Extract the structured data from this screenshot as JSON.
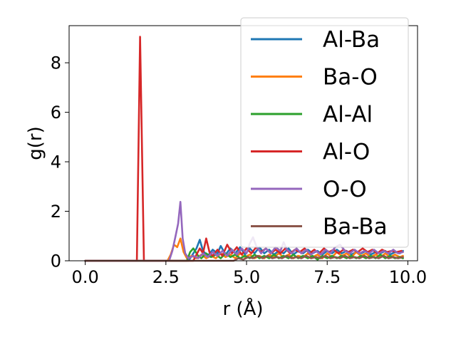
{
  "chart_data": {
    "type": "line",
    "xlabel": "r (Å)",
    "ylabel": "g(r)",
    "xlim": [
      -0.5,
      10.3
    ],
    "ylim": [
      0,
      9.5
    ],
    "xticks": [
      {
        "value": 0.0,
        "label": "0.0"
      },
      {
        "value": 2.5,
        "label": "2.5"
      },
      {
        "value": 5.0,
        "label": "5.0"
      },
      {
        "value": 7.5,
        "label": "7.5"
      },
      {
        "value": 10.0,
        "label": "10.0"
      }
    ],
    "yticks": [
      {
        "value": 0,
        "label": "0"
      },
      {
        "value": 2,
        "label": "2"
      },
      {
        "value": 4,
        "label": "4"
      },
      {
        "value": 6,
        "label": "6"
      },
      {
        "value": 8,
        "label": "8"
      }
    ],
    "grid": false,
    "legend_position": "top-right",
    "series": [
      {
        "name": "Al-Ba",
        "color": "#1f77b4",
        "points": [
          [
            0,
            0
          ],
          [
            3.2,
            0
          ],
          [
            3.3,
            0.2
          ],
          [
            3.45,
            0.5
          ],
          [
            3.55,
            0.85
          ],
          [
            3.65,
            0.4
          ],
          [
            3.8,
            0.2
          ],
          [
            3.95,
            0.45
          ],
          [
            4.1,
            0.3
          ],
          [
            4.2,
            0.6
          ],
          [
            4.35,
            0.25
          ],
          [
            4.5,
            0.5
          ],
          [
            4.65,
            0.3
          ],
          [
            4.8,
            0.55
          ],
          [
            4.95,
            0.25
          ],
          [
            5.1,
            0.5
          ],
          [
            5.25,
            0.3
          ],
          [
            5.4,
            0.55
          ],
          [
            5.55,
            0.3
          ],
          [
            5.7,
            0.45
          ],
          [
            5.85,
            0.25
          ],
          [
            6.0,
            0.4
          ],
          [
            6.15,
            0.3
          ],
          [
            6.3,
            0.5
          ],
          [
            6.45,
            0.25
          ],
          [
            6.6,
            0.4
          ],
          [
            6.75,
            0.3
          ],
          [
            6.9,
            0.45
          ],
          [
            7.05,
            0.3
          ],
          [
            7.2,
            0.4
          ],
          [
            7.35,
            0.25
          ],
          [
            7.5,
            0.4
          ],
          [
            7.65,
            0.3
          ],
          [
            7.8,
            0.45
          ],
          [
            7.95,
            0.3
          ],
          [
            8.1,
            0.4
          ],
          [
            8.25,
            0.25
          ],
          [
            8.4,
            0.35
          ],
          [
            8.55,
            0.3
          ],
          [
            8.7,
            0.4
          ],
          [
            8.85,
            0.25
          ],
          [
            9.0,
            0.35
          ],
          [
            9.15,
            0.3
          ],
          [
            9.3,
            0.4
          ],
          [
            9.45,
            0.25
          ],
          [
            9.6,
            0.35
          ],
          [
            9.75,
            0.3
          ],
          [
            9.85,
            0.4
          ]
        ]
      },
      {
        "name": "Ba-O",
        "color": "#ff7f0e",
        "points": [
          [
            0,
            0
          ],
          [
            2.55,
            0
          ],
          [
            2.65,
            0.25
          ],
          [
            2.75,
            0.65
          ],
          [
            2.85,
            0.55
          ],
          [
            2.95,
            0.9
          ],
          [
            3.05,
            0.35
          ],
          [
            3.15,
            0.1
          ],
          [
            3.3,
            0.2
          ],
          [
            3.45,
            0.1
          ],
          [
            3.6,
            0.25
          ],
          [
            3.75,
            0.1
          ],
          [
            3.9,
            0.2
          ],
          [
            4.05,
            0.1
          ],
          [
            4.2,
            0.3
          ],
          [
            4.35,
            0.15
          ],
          [
            4.5,
            0.25
          ],
          [
            4.65,
            0.1
          ],
          [
            4.8,
            0.3
          ],
          [
            4.95,
            0.15
          ],
          [
            5.1,
            0.25
          ],
          [
            5.25,
            0.1
          ],
          [
            5.4,
            0.2
          ],
          [
            5.55,
            0.1
          ],
          [
            5.7,
            0.25
          ],
          [
            5.85,
            0.15
          ],
          [
            6.0,
            0.3
          ],
          [
            6.15,
            0.15
          ],
          [
            6.3,
            0.25
          ],
          [
            6.45,
            0.1
          ],
          [
            6.6,
            0.2
          ],
          [
            6.75,
            0.15
          ],
          [
            6.9,
            0.3
          ],
          [
            7.05,
            0.15
          ],
          [
            7.2,
            0.25
          ],
          [
            7.35,
            0.1
          ],
          [
            7.5,
            0.3
          ],
          [
            7.65,
            0.15
          ],
          [
            7.8,
            0.35
          ],
          [
            7.95,
            0.2
          ],
          [
            8.1,
            0.3
          ],
          [
            8.25,
            0.15
          ],
          [
            8.4,
            0.35
          ],
          [
            8.55,
            0.2
          ],
          [
            8.7,
            0.3
          ],
          [
            8.85,
            0.15
          ],
          [
            9.0,
            0.25
          ],
          [
            9.15,
            0.15
          ],
          [
            9.3,
            0.3
          ],
          [
            9.45,
            0.15
          ],
          [
            9.6,
            0.25
          ],
          [
            9.75,
            0.15
          ],
          [
            9.85,
            0.2
          ]
        ]
      },
      {
        "name": "Al-Al",
        "color": "#2ca02c",
        "points": [
          [
            0,
            0
          ],
          [
            3.15,
            0
          ],
          [
            3.25,
            0.35
          ],
          [
            3.35,
            0.5
          ],
          [
            3.5,
            0.2
          ],
          [
            3.6,
            0.1
          ],
          [
            3.75,
            0.3
          ],
          [
            3.9,
            0.15
          ],
          [
            4.05,
            0.25
          ],
          [
            4.2,
            0.1
          ],
          [
            4.35,
            0.3
          ],
          [
            4.5,
            0.15
          ],
          [
            4.65,
            0.25
          ],
          [
            4.8,
            0.1
          ],
          [
            4.95,
            0.2
          ],
          [
            5.1,
            0.1
          ],
          [
            5.25,
            0.25
          ],
          [
            5.4,
            0.1
          ],
          [
            5.55,
            0.2
          ],
          [
            5.7,
            0.1
          ],
          [
            5.85,
            0.25
          ],
          [
            6.0,
            0.1
          ],
          [
            6.15,
            0.2
          ],
          [
            6.3,
            0.1
          ],
          [
            6.45,
            0.25
          ],
          [
            6.6,
            0.1
          ],
          [
            6.75,
            0.2
          ],
          [
            6.9,
            0.1
          ],
          [
            7.05,
            0.2
          ],
          [
            7.2,
            0.05
          ],
          [
            7.35,
            0.2
          ],
          [
            7.5,
            0.1
          ],
          [
            7.65,
            0.2
          ],
          [
            7.8,
            0.1
          ],
          [
            7.95,
            0.2
          ],
          [
            8.1,
            0.1
          ],
          [
            8.25,
            0.2
          ],
          [
            8.4,
            0.1
          ],
          [
            8.55,
            0.2
          ],
          [
            8.7,
            0.1
          ],
          [
            8.85,
            0.2
          ],
          [
            9.0,
            0.1
          ],
          [
            9.15,
            0.25
          ],
          [
            9.3,
            0.1
          ],
          [
            9.45,
            0.2
          ],
          [
            9.6,
            0.1
          ],
          [
            9.75,
            0.15
          ],
          [
            9.85,
            0.1
          ]
        ]
      },
      {
        "name": "Al-O",
        "color": "#d62728",
        "points": [
          [
            0,
            0
          ],
          [
            1.6,
            0
          ],
          [
            1.7,
            9.05
          ],
          [
            1.82,
            0
          ],
          [
            3.35,
            0
          ],
          [
            3.45,
            0.25
          ],
          [
            3.55,
            0.5
          ],
          [
            3.65,
            0.3
          ],
          [
            3.75,
            0.9
          ],
          [
            3.85,
            0.35
          ],
          [
            3.95,
            0.2
          ],
          [
            4.1,
            0.45
          ],
          [
            4.25,
            0.2
          ],
          [
            4.4,
            0.65
          ],
          [
            4.55,
            0.3
          ],
          [
            4.7,
            0.55
          ],
          [
            4.85,
            0.25
          ],
          [
            5.0,
            0.5
          ],
          [
            5.15,
            0.3
          ],
          [
            5.3,
            0.55
          ],
          [
            5.45,
            0.35
          ],
          [
            5.6,
            0.5
          ],
          [
            5.75,
            0.3
          ],
          [
            5.9,
            0.45
          ],
          [
            6.05,
            0.3
          ],
          [
            6.2,
            0.5
          ],
          [
            6.35,
            0.3
          ],
          [
            6.5,
            0.45
          ],
          [
            6.65,
            0.35
          ],
          [
            6.8,
            0.5
          ],
          [
            6.95,
            0.3
          ],
          [
            7.1,
            0.45
          ],
          [
            7.25,
            0.3
          ],
          [
            7.4,
            0.5
          ],
          [
            7.55,
            0.35
          ],
          [
            7.7,
            0.45
          ],
          [
            7.85,
            0.3
          ],
          [
            8.0,
            0.45
          ],
          [
            8.15,
            0.35
          ],
          [
            8.3,
            0.45
          ],
          [
            8.45,
            0.35
          ],
          [
            8.6,
            0.5
          ],
          [
            8.75,
            0.35
          ],
          [
            8.9,
            0.45
          ],
          [
            9.05,
            0.3
          ],
          [
            9.2,
            0.45
          ],
          [
            9.35,
            0.35
          ],
          [
            9.5,
            0.4
          ],
          [
            9.65,
            0.35
          ],
          [
            9.8,
            0.4
          ]
        ]
      },
      {
        "name": "O-O",
        "color": "#9467bd",
        "points": [
          [
            0,
            0
          ],
          [
            2.6,
            0
          ],
          [
            2.7,
            0.4
          ],
          [
            2.8,
            1.0
          ],
          [
            2.88,
            1.5
          ],
          [
            2.95,
            2.38
          ],
          [
            3.02,
            0.9
          ],
          [
            3.1,
            0.3
          ],
          [
            3.2,
            0.1
          ],
          [
            3.35,
            0.2
          ],
          [
            3.5,
            0.1
          ],
          [
            3.65,
            0.3
          ],
          [
            3.8,
            0.15
          ],
          [
            3.95,
            0.35
          ],
          [
            4.1,
            0.2
          ],
          [
            4.25,
            0.4
          ],
          [
            4.4,
            0.2
          ],
          [
            4.55,
            0.45
          ],
          [
            4.7,
            0.25
          ],
          [
            4.85,
            0.5
          ],
          [
            5.0,
            0.3
          ],
          [
            5.1,
            0.7
          ],
          [
            5.2,
            0.95
          ],
          [
            5.3,
            0.6
          ],
          [
            5.45,
            0.3
          ],
          [
            5.6,
            0.5
          ],
          [
            5.75,
            0.3
          ],
          [
            5.9,
            0.55
          ],
          [
            6.05,
            0.4
          ],
          [
            6.15,
            0.75
          ],
          [
            6.25,
            0.45
          ],
          [
            6.4,
            0.3
          ],
          [
            6.55,
            0.5
          ],
          [
            6.7,
            0.3
          ],
          [
            6.85,
            0.45
          ],
          [
            7.0,
            0.25
          ],
          [
            7.15,
            0.4
          ],
          [
            7.3,
            0.25
          ],
          [
            7.45,
            0.45
          ],
          [
            7.6,
            0.3
          ],
          [
            7.75,
            0.55
          ],
          [
            7.9,
            0.65
          ],
          [
            8.05,
            0.4
          ],
          [
            8.2,
            0.3
          ],
          [
            8.35,
            0.45
          ],
          [
            8.5,
            0.3
          ],
          [
            8.65,
            0.4
          ],
          [
            8.8,
            0.3
          ],
          [
            8.95,
            0.45
          ],
          [
            9.1,
            0.3
          ],
          [
            9.25,
            0.4
          ],
          [
            9.4,
            0.3
          ],
          [
            9.55,
            0.45
          ],
          [
            9.7,
            0.3
          ],
          [
            9.85,
            0.35
          ]
        ]
      },
      {
        "name": "Ba-Ba",
        "color": "#8c564b",
        "points": [
          [
            0,
            0
          ],
          [
            4.6,
            0
          ],
          [
            4.75,
            0.1
          ],
          [
            4.9,
            0.05
          ],
          [
            5.05,
            0.15
          ],
          [
            5.2,
            0.1
          ],
          [
            5.35,
            0.2
          ],
          [
            5.5,
            0.1
          ],
          [
            5.65,
            0.2
          ],
          [
            5.8,
            0.1
          ],
          [
            5.95,
            0.15
          ],
          [
            6.1,
            0.1
          ],
          [
            6.25,
            0.2
          ],
          [
            6.4,
            0.1
          ],
          [
            6.55,
            0.15
          ],
          [
            6.7,
            0.1
          ],
          [
            6.85,
            0.2
          ],
          [
            7.0,
            0.1
          ],
          [
            7.15,
            0.15
          ],
          [
            7.3,
            0.1
          ],
          [
            7.45,
            0.2
          ],
          [
            7.6,
            0.1
          ],
          [
            7.75,
            0.15
          ],
          [
            7.9,
            0.1
          ],
          [
            8.05,
            0.2
          ],
          [
            8.2,
            0.1
          ],
          [
            8.35,
            0.15
          ],
          [
            8.5,
            0.1
          ],
          [
            8.65,
            0.2
          ],
          [
            8.8,
            0.1
          ],
          [
            8.95,
            0.15
          ],
          [
            9.1,
            0.1
          ],
          [
            9.25,
            0.2
          ],
          [
            9.4,
            0.1
          ],
          [
            9.55,
            0.15
          ],
          [
            9.7,
            0.1
          ],
          [
            9.85,
            0.15
          ]
        ]
      }
    ]
  }
}
